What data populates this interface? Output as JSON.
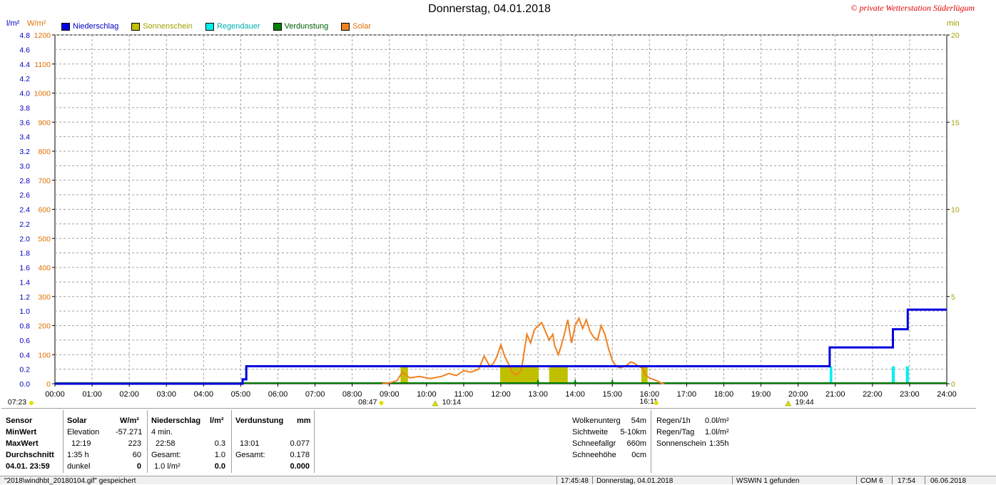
{
  "title": "Donnerstag, 04.01.2018",
  "copyright": "© private Wetterstation Süderlügum",
  "units": {
    "left1": "l/m²",
    "left2": "W/m²",
    "right": "min"
  },
  "colors": {
    "niederschlag": "#0000e0",
    "sonnenschein": "#c0c000",
    "regendauer": "#00f0f0",
    "verdunstung": "#008000",
    "solar": "#f08020",
    "axis_blue": "#0000c0",
    "axis_orange": "#e07000",
    "axis_olive": "#a0a000"
  },
  "legend": [
    {
      "label": "Niederschlag",
      "color": "#0000e0",
      "text_color": "#0000c0"
    },
    {
      "label": "Sonnenschein",
      "color": "#c0c000",
      "text_color": "#a0a000"
    },
    {
      "label": "Regendauer",
      "color": "#00f0f0",
      "text_color": "#00b0b0"
    },
    {
      "label": "Verdunstung",
      "color": "#008000",
      "text_color": "#006000"
    },
    {
      "label": "Solar",
      "color": "#f08020",
      "text_color": "#e07000"
    }
  ],
  "chart_data": {
    "type": "line",
    "title": "Donnerstag, 04.01.2018",
    "x_ticks": [
      "00:00",
      "01:00",
      "02:00",
      "03:00",
      "04:00",
      "05:00",
      "06:00",
      "07:00",
      "08:00",
      "09:00",
      "10:00",
      "11:00",
      "12:00",
      "13:00",
      "14:00",
      "15:00",
      "16:00",
      "17:00",
      "18:00",
      "19:00",
      "20:00",
      "21:00",
      "22:00",
      "23:00",
      "24:00"
    ],
    "y_left_precip_ticks": [
      "0.0",
      "0.2",
      "0.4",
      "0.6",
      "0.8",
      "1.0",
      "1.2",
      "1.4",
      "1.6",
      "1.8",
      "2.0",
      "2.2",
      "2.4",
      "2.6",
      "2.8",
      "3.0",
      "3.2",
      "3.4",
      "3.6",
      "3.8",
      "4.0",
      "4.2",
      "4.4",
      "4.6",
      "4.8"
    ],
    "y_left_solar_ticks": [
      "0",
      "100",
      "200",
      "300",
      "400",
      "500",
      "600",
      "700",
      "800",
      "900",
      "1000",
      "1100",
      "1200"
    ],
    "y_right_ticks": [
      "0",
      "5",
      "10",
      "15",
      "20"
    ],
    "ylim_precip": [
      0,
      4.8
    ],
    "ylim_solar": [
      0,
      1200
    ],
    "ylim_minutes": [
      0,
      20
    ],
    "niederschlag_steps": [
      [
        0,
        0
      ],
      [
        5.05,
        0
      ],
      [
        5.05,
        0.06
      ],
      [
        5.15,
        0.06
      ],
      [
        5.15,
        0.24
      ],
      [
        20.85,
        0.24
      ],
      [
        20.85,
        0.5
      ],
      [
        22.55,
        0.5
      ],
      [
        22.55,
        0.75
      ],
      [
        22.95,
        0.75
      ],
      [
        22.95,
        1.02
      ],
      [
        24,
        1.02
      ]
    ],
    "sonnenschein_bars": [
      [
        9.3,
        9.5,
        1
      ],
      [
        11.98,
        13.02,
        1
      ],
      [
        13.3,
        13.8,
        1
      ],
      [
        15.78,
        15.95,
        1
      ]
    ],
    "regendauer_bars": [
      [
        20.85,
        20.92,
        1
      ],
      [
        22.52,
        22.6,
        1
      ],
      [
        22.9,
        22.98,
        1
      ]
    ],
    "verdunstung_marks": [
      13.0,
      14.0,
      15.0
    ],
    "solar_points": [
      [
        8.8,
        0
      ],
      [
        9.0,
        3
      ],
      [
        9.2,
        10
      ],
      [
        9.35,
        40
      ],
      [
        9.45,
        30
      ],
      [
        9.55,
        20
      ],
      [
        9.8,
        25
      ],
      [
        10.1,
        18
      ],
      [
        10.4,
        25
      ],
      [
        10.6,
        35
      ],
      [
        10.8,
        28
      ],
      [
        11.0,
        45
      ],
      [
        11.2,
        40
      ],
      [
        11.4,
        50
      ],
      [
        11.55,
        95
      ],
      [
        11.7,
        60
      ],
      [
        11.8,
        70
      ],
      [
        11.9,
        95
      ],
      [
        12.0,
        135
      ],
      [
        12.1,
        95
      ],
      [
        12.2,
        70
      ],
      [
        12.3,
        40
      ],
      [
        12.4,
        30
      ],
      [
        12.55,
        45
      ],
      [
        12.7,
        170
      ],
      [
        12.8,
        140
      ],
      [
        12.9,
        185
      ],
      [
        13.0,
        200
      ],
      [
        13.1,
        210
      ],
      [
        13.2,
        180
      ],
      [
        13.3,
        150
      ],
      [
        13.4,
        170
      ],
      [
        13.45,
        130
      ],
      [
        13.55,
        100
      ],
      [
        13.6,
        120
      ],
      [
        13.7,
        165
      ],
      [
        13.8,
        220
      ],
      [
        13.85,
        180
      ],
      [
        13.9,
        140
      ],
      [
        14.0,
        200
      ],
      [
        14.1,
        225
      ],
      [
        14.2,
        190
      ],
      [
        14.3,
        220
      ],
      [
        14.4,
        180
      ],
      [
        14.5,
        160
      ],
      [
        14.6,
        150
      ],
      [
        14.7,
        200
      ],
      [
        14.8,
        170
      ],
      [
        14.9,
        120
      ],
      [
        15.0,
        80
      ],
      [
        15.1,
        60
      ],
      [
        15.2,
        55
      ],
      [
        15.35,
        60
      ],
      [
        15.5,
        75
      ],
      [
        15.6,
        70
      ],
      [
        15.7,
        60
      ],
      [
        15.8,
        55
      ],
      [
        15.9,
        30
      ],
      [
        16.0,
        20
      ],
      [
        16.2,
        10
      ],
      [
        16.3,
        3
      ],
      [
        16.4,
        0
      ]
    ],
    "solar_points_note": "",
    "annotations": [
      {
        "time": "07:23",
        "label": "07:23"
      },
      {
        "time": "08:47",
        "label": "08:47"
      },
      {
        "time": "10:14",
        "label": "10:14"
      },
      {
        "time": "16:11",
        "label": "16:11"
      },
      {
        "time": "19:44",
        "label": "19:44"
      }
    ]
  },
  "panel": {
    "sensor": {
      "header": "Sensor",
      "rows": [
        "MinWert",
        "MaxWert",
        "Durchschnitt",
        "04.01.  23:59"
      ]
    },
    "solar": {
      "header": "Solar",
      "unit": "W/m²",
      "rows": [
        [
          "Elevation",
          "-57.271"
        ],
        [
          "12:19",
          "223"
        ],
        [
          "1:35 h",
          "60"
        ],
        [
          "dunkel",
          "0"
        ]
      ]
    },
    "niederschlag": {
      "header": "Niederschlag",
      "unit": "l/m²",
      "rows": [
        [
          "4 min.",
          ""
        ],
        [
          "22:58",
          "0.3"
        ],
        [
          "Gesamt:",
          "1.0"
        ],
        [
          "1.0 l/m²",
          "0.0"
        ]
      ]
    },
    "verdunstung": {
      "header": "Verdunstung",
      "unit": "mm",
      "rows": [
        [
          "",
          ""
        ],
        [
          "13:01",
          "0.077"
        ],
        [
          "Gesamt:",
          "0.178"
        ],
        [
          "",
          "0.000"
        ]
      ]
    },
    "weather": [
      [
        "Wolkenunterg",
        "54m"
      ],
      [
        "Sichtweite",
        "5-10km"
      ],
      [
        "Schneefallgr",
        "660m"
      ],
      [
        "Schneehöhe",
        "0cm"
      ]
    ],
    "rain": [
      [
        "Regen/1h",
        "0.0l/m²"
      ],
      [
        "Regen/Tag",
        "1.0l/m²"
      ],
      [
        "Sonnenschein",
        "1:35h"
      ]
    ]
  },
  "statusbar": {
    "file": "\"2018\\windhbt_20180104.gif\" gespeichert",
    "time": "17:45:48",
    "date": "Donnerstag, 04.01.2018",
    "found": "WSWIN 1 gefunden",
    "com": "COM 6",
    "clock": "17:54",
    "today": "06.06.2018"
  }
}
